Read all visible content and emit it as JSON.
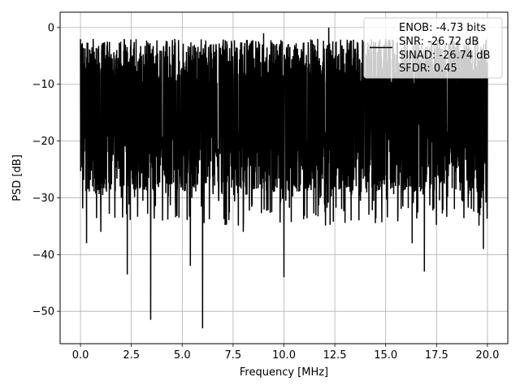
{
  "chart_data": {
    "type": "line",
    "xlabel": "Frequency [MHz]",
    "ylabel": "PSD [dB]",
    "xlim": [
      -1.0,
      21.0
    ],
    "ylim": [
      -55.7,
      2.7
    ],
    "xticks": [
      0.0,
      2.5,
      5.0,
      7.5,
      10.0,
      12.5,
      15.0,
      17.5,
      20.0
    ],
    "xtick_labels": [
      "0.0",
      "2.5",
      "5.0",
      "7.5",
      "10.0",
      "12.5",
      "15.0",
      "17.5",
      "20.0"
    ],
    "yticks": [
      0,
      -10,
      -20,
      -30,
      -40,
      -50
    ],
    "ytick_labels": [
      "0",
      "−10",
      "−20",
      "−30",
      "−40",
      "−50"
    ],
    "grid": true,
    "legend_position": "top-right",
    "legend": {
      "lines": [
        "ENOB: -4.73 bits",
        "SNR: -26.72 dB",
        "SINAD: -26.74 dB",
        "SFDR: 0.45"
      ]
    },
    "series": [
      {
        "color": "#000000",
        "x_range": [
          0.0,
          20.0
        ],
        "typical_band_db": [
          -27,
          -5
        ],
        "peaks": [
          {
            "x": 0.05,
            "y": -3.0
          },
          {
            "x": 3.0,
            "y": -5.0
          },
          {
            "x": 9.0,
            "y": -1.0
          },
          {
            "x": 12.2,
            "y": 0.0
          },
          {
            "x": 15.0,
            "y": -2.0
          },
          {
            "x": 17.5,
            "y": -3.0
          }
        ],
        "dips": [
          {
            "x": 0.3,
            "y": -38.0
          },
          {
            "x": 1.0,
            "y": -36.0
          },
          {
            "x": 2.3,
            "y": -43.5
          },
          {
            "x": 3.45,
            "y": -51.5
          },
          {
            "x": 5.4,
            "y": -42.0
          },
          {
            "x": 6.0,
            "y": -53.0
          },
          {
            "x": 8.0,
            "y": -36.0
          },
          {
            "x": 10.0,
            "y": -44.0
          },
          {
            "x": 13.3,
            "y": -34.0
          },
          {
            "x": 16.3,
            "y": -38.0
          },
          {
            "x": 16.9,
            "y": -43.0
          },
          {
            "x": 19.8,
            "y": -39.0
          }
        ]
      }
    ]
  }
}
